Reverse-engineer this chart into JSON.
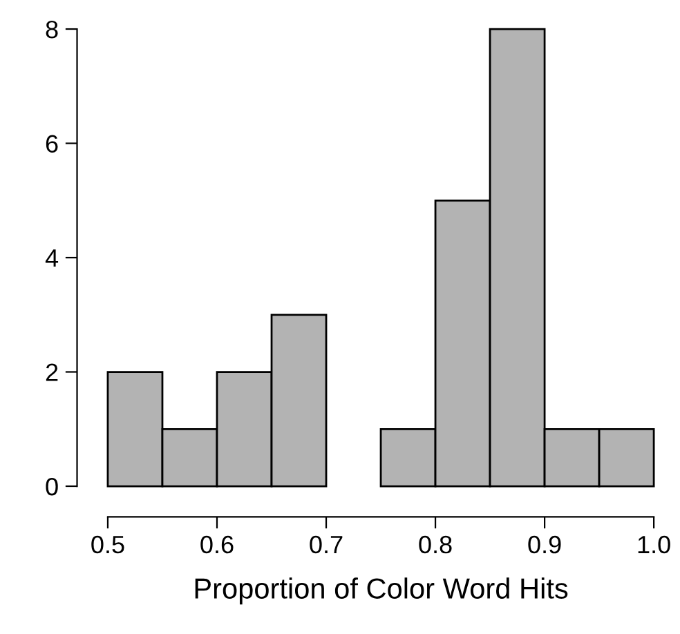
{
  "chart_data": {
    "type": "histogram",
    "xlabel": "Proportion of Color Word Hits",
    "bins": [
      0.5,
      0.55,
      0.6,
      0.65,
      0.7,
      0.75,
      0.8,
      0.85,
      0.9,
      0.95,
      1.0
    ],
    "values": [
      2,
      1,
      2,
      3,
      0,
      1,
      5,
      8,
      1,
      1
    ],
    "color": "#b3b3b3",
    "xlim": [
      0.5,
      1.0
    ],
    "ylim": [
      0,
      8
    ],
    "xticks": [
      {
        "value": 0.5,
        "label": "0.5"
      },
      {
        "value": 0.6,
        "label": "0.6"
      },
      {
        "value": 0.7,
        "label": "0.7"
      },
      {
        "value": 0.8,
        "label": "0.8"
      },
      {
        "value": 0.9,
        "label": "0.9"
      },
      {
        "value": 1.0,
        "label": "1.0"
      }
    ],
    "yticks": [
      0,
      2,
      4,
      6,
      8
    ],
    "grid": false,
    "legend": false
  }
}
